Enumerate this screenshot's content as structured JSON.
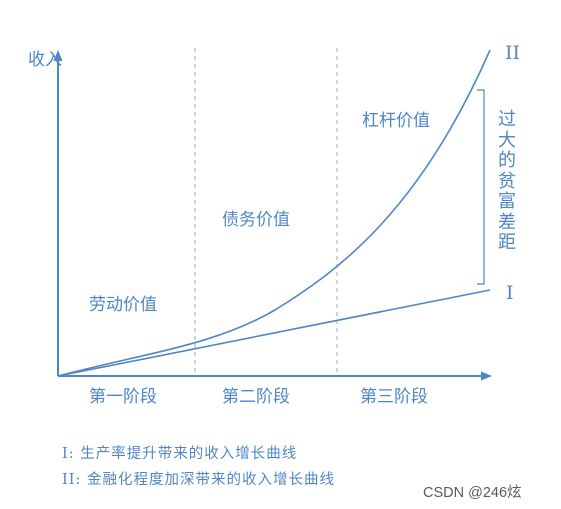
{
  "diagram": {
    "y_axis_label": "收入",
    "curve_labels": {
      "curve_ii": "II",
      "curve_i": "I"
    },
    "region_labels": {
      "labor_value": "劳动价值",
      "debt_value": "债务价值",
      "leverage_value": "杠杆价值"
    },
    "stages": [
      "第一阶段",
      "第二阶段",
      "第三阶段"
    ],
    "gap_label": "过大的贫富差距",
    "legend": [
      "I: 生产率提升带来的收入增长曲线",
      "II: 金融化程度加深带来的收入增长曲线"
    ],
    "colors": {
      "accent": "#4f86c6",
      "divider": "#9aa7b8"
    }
  },
  "watermark": "CSDN @246炫"
}
